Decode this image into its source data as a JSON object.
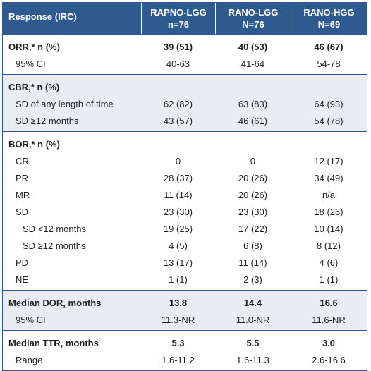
{
  "header": {
    "col0": "Response (IRC)",
    "col1_line1": "RAPNO-LGG",
    "col1_line2": "n=76",
    "col2_line1": "RANO-LGG",
    "col2_line2": "N=76",
    "col3_line1": "RANO-HGG",
    "col3_line2": "N=69"
  },
  "sections": [
    {
      "shade": false,
      "rows": [
        {
          "label": "ORR,* n (%)",
          "bold": true,
          "indent": 0,
          "v": [
            "39 (51)",
            "40 (53)",
            "46 (67)"
          ]
        },
        {
          "label": "95% CI",
          "bold": false,
          "indent": 1,
          "v": [
            "40-63",
            "41-64",
            "54-78"
          ]
        }
      ]
    },
    {
      "shade": true,
      "rows": [
        {
          "label": "CBR,* n (%)",
          "bold": true,
          "indent": 0,
          "v": [
            "",
            "",
            ""
          ]
        },
        {
          "label": "SD of any length of time",
          "bold": false,
          "indent": 1,
          "v": [
            "62 (82)",
            "63 (83)",
            "64 (93)"
          ]
        },
        {
          "label": "SD ≥12 months",
          "bold": false,
          "indent": 1,
          "v": [
            "43 (57)",
            "46 (61)",
            "54 (78)"
          ]
        }
      ]
    },
    {
      "shade": false,
      "rows": [
        {
          "label": "BOR,* n (%)",
          "bold": true,
          "indent": 0,
          "v": [
            "",
            "",
            ""
          ]
        },
        {
          "label": "CR",
          "bold": false,
          "indent": 1,
          "v": [
            "0",
            "0",
            "12 (17)"
          ]
        },
        {
          "label": "PR",
          "bold": false,
          "indent": 1,
          "v": [
            "28 (37)",
            "20 (26)",
            "34 (49)"
          ]
        },
        {
          "label": "MR",
          "bold": false,
          "indent": 1,
          "v": [
            "11 (14)",
            "20 (26)",
            "n/a"
          ]
        },
        {
          "label": "SD",
          "bold": false,
          "indent": 1,
          "v": [
            "23 (30)",
            "23 (30)",
            "18 (26)"
          ]
        },
        {
          "label": "SD <12 months",
          "bold": false,
          "indent": 2,
          "v": [
            "19 (25)",
            "17 (22)",
            "10 (14)"
          ]
        },
        {
          "label": "SD ≥12 months",
          "bold": false,
          "indent": 2,
          "v": [
            "4 (5)",
            "6 (8)",
            "8 (12)"
          ]
        },
        {
          "label": "PD",
          "bold": false,
          "indent": 1,
          "v": [
            "13 (17)",
            "11 (14)",
            "4 (6)"
          ]
        },
        {
          "label": "NE",
          "bold": false,
          "indent": 1,
          "v": [
            "1 (1)",
            "2 (3)",
            "1 (1)"
          ]
        }
      ]
    },
    {
      "shade": true,
      "rows": [
        {
          "label": "Median DOR, months",
          "bold": true,
          "indent": 0,
          "v": [
            "13.8",
            "14.4",
            "16.6"
          ]
        },
        {
          "label": "95% CI",
          "bold": false,
          "indent": 1,
          "v": [
            "11.3-NR",
            "11.0-NR",
            "11.6-NR"
          ]
        }
      ]
    },
    {
      "shade": false,
      "rows": [
        {
          "label": "Median TTR, months",
          "bold": true,
          "indent": 0,
          "v": [
            "5.3",
            "5.5",
            "3.0"
          ]
        },
        {
          "label": "Range",
          "bold": false,
          "indent": 1,
          "v": [
            "1.6-11.2",
            "1.6-11.3",
            "2.6-16.6"
          ]
        }
      ]
    }
  ]
}
